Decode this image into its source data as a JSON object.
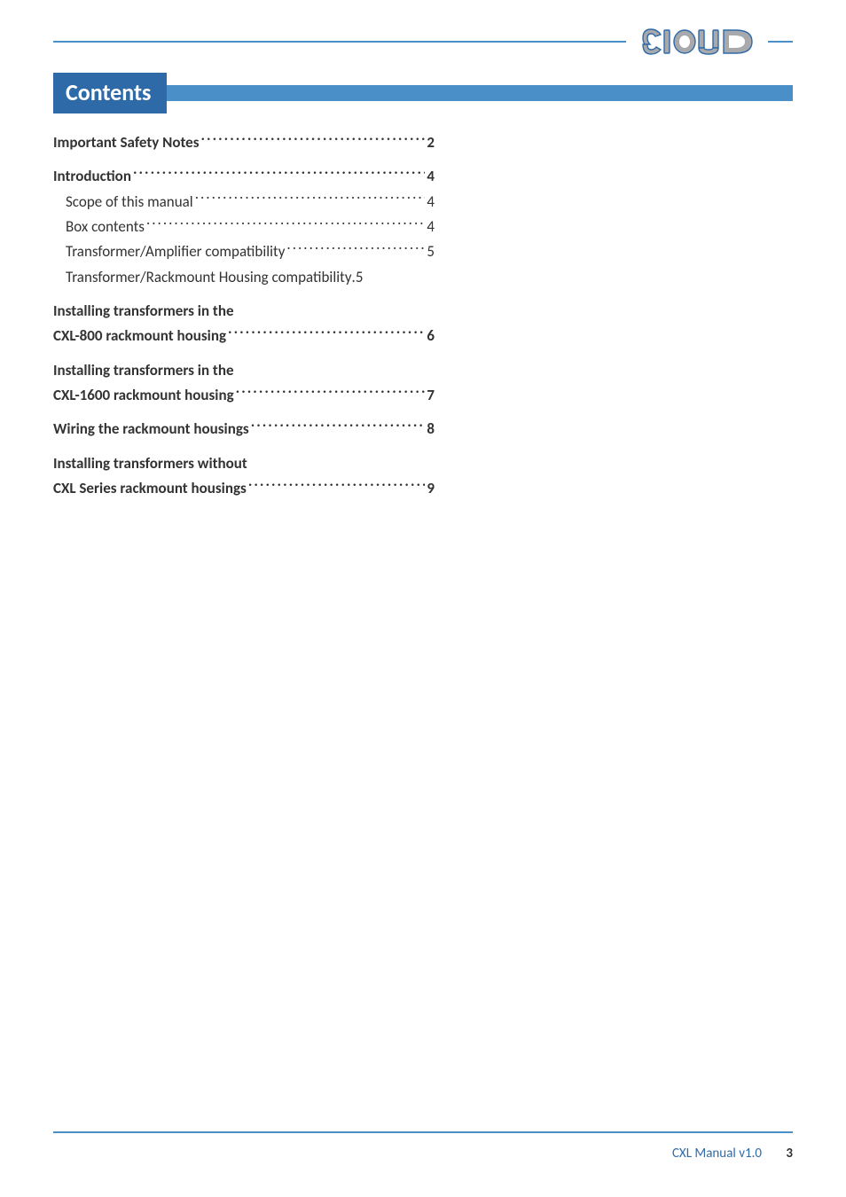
{
  "brand": {
    "name": "Cloud",
    "fill_color": "#a7a9ac",
    "stroke_color": "#2f6aa8"
  },
  "header": {
    "title": "Contents",
    "tab_bg": "#2f6aa8",
    "stripe_bg": "#4a8fc7",
    "rule_color": "#4a8fc7"
  },
  "toc": {
    "entries": [
      {
        "label": "Important Safety Notes",
        "page": "2",
        "bold": true,
        "sub": false,
        "continued": false
      },
      {
        "label": "Introduction",
        "page": "4",
        "bold": true,
        "sub": false,
        "continued": false
      },
      {
        "label": "Scope of this manual",
        "page": "4",
        "bold": false,
        "sub": true,
        "continued": false
      },
      {
        "label": "Box contents",
        "page": "4",
        "bold": false,
        "sub": true,
        "continued": false
      },
      {
        "label": "Transformer/Amplifier compatibility",
        "page": "5",
        "bold": false,
        "sub": true,
        "continued": false
      },
      {
        "label": "Transformer/Rackmount Housing compatibility",
        "page": "5",
        "bold": false,
        "sub": true,
        "continued": false,
        "nodots": true
      },
      {
        "label": "Installing transformers in the",
        "page": "",
        "bold": true,
        "sub": false,
        "continued": true
      },
      {
        "label": "CXL-800 rackmount housing",
        "page": "6",
        "bold": true,
        "sub": false,
        "continued": false
      },
      {
        "label": "Installing transformers in the",
        "page": "",
        "bold": true,
        "sub": false,
        "continued": true
      },
      {
        "label": "CXL-1600 rackmount housing",
        "page": "7",
        "bold": true,
        "sub": false,
        "continued": false
      },
      {
        "label": "Wiring the rackmount housings",
        "page": "8",
        "bold": true,
        "sub": false,
        "continued": false
      },
      {
        "label": "Installing transformers without",
        "page": "",
        "bold": true,
        "sub": false,
        "continued": true
      },
      {
        "label": "CXL Series rackmount housings",
        "page": "9",
        "bold": true,
        "sub": false,
        "continued": false
      }
    ]
  },
  "footer": {
    "doc": "CXL Manual v1.0",
    "page": "3",
    "rule_color": "#4a8fc7",
    "text_color": "#2f6aa8"
  }
}
